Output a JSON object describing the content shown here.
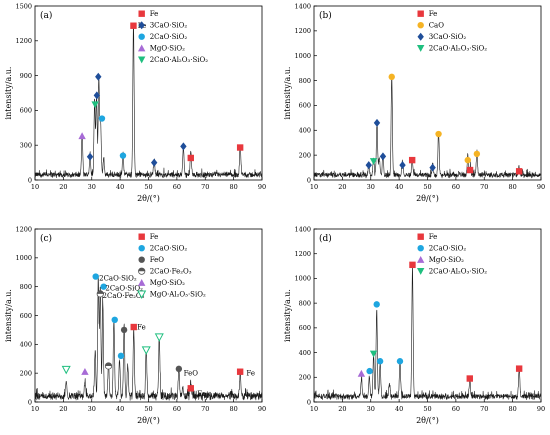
{
  "chart_data": [
    {
      "type": "line",
      "panel_label": "(a)",
      "xlabel": "2θ/(°)",
      "ylabel": "intensity/a.u.",
      "xlim": [
        10,
        90
      ],
      "ylim": [
        0,
        1500
      ],
      "xticks": [
        10,
        20,
        30,
        40,
        50,
        60,
        70,
        80,
        90
      ],
      "yticks": [
        0,
        300,
        600,
        900,
        1200,
        1500
      ],
      "baseline": 45,
      "noise": 25,
      "peaks": [
        [
          26.6,
          340
        ],
        [
          29.4,
          180
        ],
        [
          31.0,
          640
        ],
        [
          31.7,
          680
        ],
        [
          32.5,
          830
        ],
        [
          33.1,
          470
        ],
        [
          34.2,
          140
        ],
        [
          41.0,
          180
        ],
        [
          44.7,
          1320
        ],
        [
          52.0,
          130
        ],
        [
          62.3,
          250
        ],
        [
          64.9,
          190
        ],
        [
          82.3,
          250
        ]
      ],
      "legend": [
        {
          "label": "Fe",
          "marker": "square",
          "color": "#e8383d"
        },
        {
          "label": "3CaO·SiO₂",
          "marker": "diamond",
          "color": "#1f4e9a"
        },
        {
          "label": "2CaO·SiO₂",
          "marker": "circle",
          "color": "#1ea6e0"
        },
        {
          "label": "MgO·SiO₂",
          "marker": "triangle-up",
          "color": "#a76bd6"
        },
        {
          "label": "2CaO·Al₂O₃·SiO₂",
          "marker": "triangle-down",
          "color": "#1fbf7f"
        }
      ],
      "markers": [
        {
          "x": 44.7,
          "y": 1330,
          "marker": "square",
          "color": "#e8383d"
        },
        {
          "x": 64.9,
          "y": 190,
          "marker": "square",
          "color": "#e8383d"
        },
        {
          "x": 82.3,
          "y": 280,
          "marker": "square",
          "color": "#e8383d"
        },
        {
          "x": 32.3,
          "y": 890,
          "marker": "diamond",
          "color": "#1f4e9a"
        },
        {
          "x": 31.8,
          "y": 730,
          "marker": "diamond",
          "color": "#1f4e9a"
        },
        {
          "x": 29.4,
          "y": 200,
          "marker": "diamond",
          "color": "#1f4e9a"
        },
        {
          "x": 52.0,
          "y": 150,
          "marker": "diamond",
          "color": "#1f4e9a"
        },
        {
          "x": 62.3,
          "y": 290,
          "marker": "diamond",
          "color": "#1f4e9a"
        },
        {
          "x": 33.6,
          "y": 530,
          "marker": "circle",
          "color": "#1ea6e0"
        },
        {
          "x": 41.0,
          "y": 210,
          "marker": "circle",
          "color": "#1ea6e0"
        },
        {
          "x": 26.6,
          "y": 380,
          "marker": "triangle-up",
          "color": "#a76bd6"
        },
        {
          "x": 31.2,
          "y": 650,
          "marker": "triangle-down",
          "color": "#1fbf7f"
        }
      ],
      "annotations": [
        {
          "text": "Fe",
          "x": 46.2,
          "y": 1330
        }
      ]
    },
    {
      "type": "line",
      "panel_label": "(b)",
      "xlabel": "2θ/(°)",
      "ylabel": "intensity/a.u.",
      "xlim": [
        10,
        90
      ],
      "ylim": [
        0,
        1400
      ],
      "xticks": [
        10,
        20,
        30,
        40,
        50,
        60,
        70,
        80,
        90
      ],
      "yticks": [
        0,
        200,
        400,
        600,
        800,
        1000,
        1200,
        1400
      ],
      "baseline": 40,
      "noise": 22,
      "peaks": [
        [
          29.3,
          110
        ],
        [
          31.0,
          130
        ],
        [
          32.2,
          420
        ],
        [
          33.0,
          140
        ],
        [
          34.3,
          160
        ],
        [
          37.4,
          800
        ],
        [
          41.2,
          110
        ],
        [
          44.6,
          140
        ],
        [
          51.8,
          90
        ],
        [
          53.9,
          340
        ],
        [
          64.2,
          150
        ],
        [
          65.0,
          70
        ],
        [
          67.4,
          190
        ],
        [
          82.3,
          60
        ]
      ],
      "legend": [
        {
          "label": "Fe",
          "marker": "square",
          "color": "#e8383d"
        },
        {
          "label": "CaO",
          "marker": "circle",
          "color": "#f5b324"
        },
        {
          "label": "3CaO·SiO₂",
          "marker": "diamond",
          "color": "#1f4e9a"
        },
        {
          "label": "2CaO·Al₂O₃·SiO₂",
          "marker": "triangle-down",
          "color": "#1fbf7f"
        }
      ],
      "markers": [
        {
          "x": 44.6,
          "y": 160,
          "marker": "square",
          "color": "#e8383d"
        },
        {
          "x": 65.0,
          "y": 80,
          "marker": "square",
          "color": "#e8383d"
        },
        {
          "x": 82.3,
          "y": 70,
          "marker": "square",
          "color": "#e8383d"
        },
        {
          "x": 37.4,
          "y": 830,
          "marker": "circle",
          "color": "#f5b324"
        },
        {
          "x": 53.9,
          "y": 370,
          "marker": "circle",
          "color": "#f5b324"
        },
        {
          "x": 64.2,
          "y": 160,
          "marker": "circle",
          "color": "#f5b324"
        },
        {
          "x": 67.4,
          "y": 210,
          "marker": "circle",
          "color": "#f5b324"
        },
        {
          "x": 32.2,
          "y": 460,
          "marker": "diamond",
          "color": "#1f4e9a"
        },
        {
          "x": 29.3,
          "y": 120,
          "marker": "diamond",
          "color": "#1f4e9a"
        },
        {
          "x": 34.3,
          "y": 190,
          "marker": "diamond",
          "color": "#1f4e9a"
        },
        {
          "x": 41.2,
          "y": 120,
          "marker": "diamond",
          "color": "#1f4e9a"
        },
        {
          "x": 51.8,
          "y": 100,
          "marker": "diamond",
          "color": "#1f4e9a"
        },
        {
          "x": 31.0,
          "y": 150,
          "marker": "triangle-down",
          "color": "#1fbf7f"
        }
      ],
      "annotations": []
    },
    {
      "type": "line",
      "panel_label": "(c)",
      "xlabel": "2θ/(°)",
      "ylabel": "intensity/a.u.",
      "xlim": [
        10,
        90
      ],
      "ylim": [
        0,
        1200
      ],
      "xticks": [
        10,
        20,
        30,
        40,
        50,
        60,
        70,
        80,
        90
      ],
      "yticks": [
        0,
        200,
        400,
        600,
        800,
        1000,
        1200
      ],
      "baseline": 40,
      "noise": 28,
      "peaks": [
        [
          21.0,
          120
        ],
        [
          27.6,
          110
        ],
        [
          31.2,
          320
        ],
        [
          32.3,
          820
        ],
        [
          33.0,
          760
        ],
        [
          33.9,
          640
        ],
        [
          35.9,
          230
        ],
        [
          37.8,
          530
        ],
        [
          39.8,
          260
        ],
        [
          41.4,
          500
        ],
        [
          42.7,
          220
        ],
        [
          44.8,
          460
        ],
        [
          49.2,
          330
        ],
        [
          53.8,
          420
        ],
        [
          60.7,
          200
        ],
        [
          62.0,
          60
        ],
        [
          64.9,
          90
        ],
        [
          82.3,
          160
        ]
      ],
      "legend": [
        {
          "label": "Fe",
          "marker": "square",
          "color": "#e8383d"
        },
        {
          "label": "2CaO·SiO₂",
          "marker": "circle",
          "color": "#1ea6e0"
        },
        {
          "label": "FeO",
          "marker": "circle",
          "color": "#555555"
        },
        {
          "label": "2CaO·Fe₂O₃",
          "marker": "halfcircle",
          "color": "#555555"
        },
        {
          "label": "MgO·SiO₂",
          "marker": "triangle-up",
          "color": "#a76bd6"
        },
        {
          "label": "MgO·Al₂O₃·SiO₂",
          "marker": "triangle-down-open",
          "color": "#1fbf7f"
        }
      ],
      "markers": [
        {
          "x": 44.8,
          "y": 520,
          "marker": "square",
          "color": "#e8383d"
        },
        {
          "x": 64.9,
          "y": 95,
          "marker": "square",
          "color": "#e8383d"
        },
        {
          "x": 82.3,
          "y": 210,
          "marker": "square",
          "color": "#e8383d"
        },
        {
          "x": 31.4,
          "y": 870,
          "marker": "circle",
          "color": "#1ea6e0"
        },
        {
          "x": 34.2,
          "y": 800,
          "marker": "circle",
          "color": "#1ea6e0"
        },
        {
          "x": 38.1,
          "y": 570,
          "marker": "circle",
          "color": "#1ea6e0"
        },
        {
          "x": 40.3,
          "y": 320,
          "marker": "circle",
          "color": "#1ea6e0"
        },
        {
          "x": 41.4,
          "y": 500,
          "marker": "circle",
          "color": "#555555"
        },
        {
          "x": 60.7,
          "y": 230,
          "marker": "circle",
          "color": "#555555"
        },
        {
          "x": 33.0,
          "y": 750,
          "marker": "halfcircle",
          "color": "#555555"
        },
        {
          "x": 35.9,
          "y": 250,
          "marker": "halfcircle",
          "color": "#555555"
        },
        {
          "x": 27.6,
          "y": 210,
          "marker": "triangle-up",
          "color": "#a76bd6"
        },
        {
          "x": 21.0,
          "y": 225,
          "marker": "triangle-down-open",
          "color": "#1fbf7f"
        },
        {
          "x": 49.2,
          "y": 360,
          "marker": "triangle-down-open",
          "color": "#1fbf7f"
        },
        {
          "x": 53.8,
          "y": 450,
          "marker": "triangle-down-open",
          "color": "#1fbf7f"
        }
      ],
      "annotations": [
        {
          "text": "2CaO·SiO₂",
          "x": 32.6,
          "y": 860
        },
        {
          "text": "2CaO·SiO₂",
          "x": 34.8,
          "y": 790
        },
        {
          "text": "2CaO·Fe₂O₃",
          "x": 33.8,
          "y": 740
        },
        {
          "text": "Fe",
          "x": 46.0,
          "y": 520
        },
        {
          "text": "FeO",
          "x": 62.4,
          "y": 200
        },
        {
          "text": "Fe",
          "x": 67.2,
          "y": 60
        },
        {
          "text": "Fe",
          "x": 84.5,
          "y": 200
        }
      ]
    },
    {
      "type": "line",
      "panel_label": "(d)",
      "xlabel": "2θ/(°)",
      "ylabel": "intensity/a.u.",
      "xlim": [
        10,
        90
      ],
      "ylim": [
        0,
        1400
      ],
      "xticks": [
        10,
        20,
        30,
        40,
        50,
        60,
        70,
        80,
        90
      ],
      "yticks": [
        0,
        200,
        400,
        600,
        800,
        1000,
        1200,
        1400
      ],
      "baseline": 45,
      "noise": 25,
      "peaks": [
        [
          26.7,
          150
        ],
        [
          29.5,
          170
        ],
        [
          31.0,
          330
        ],
        [
          32.1,
          700
        ],
        [
          33.3,
          280
        ],
        [
          36.6,
          110
        ],
        [
          40.3,
          280
        ],
        [
          44.7,
          1060
        ],
        [
          64.9,
          140
        ],
        [
          82.3,
          230
        ]
      ],
      "legend": [
        {
          "label": "Fe",
          "marker": "square",
          "color": "#e8383d"
        },
        {
          "label": "2CaO·SiO₂",
          "marker": "circle",
          "color": "#1ea6e0"
        },
        {
          "label": "MgO·SiO₂",
          "marker": "triangle-up",
          "color": "#a76bd6"
        },
        {
          "label": "2CaO·Al₂O₃·SiO₂",
          "marker": "triangle-down",
          "color": "#1fbf7f"
        }
      ],
      "markers": [
        {
          "x": 44.7,
          "y": 1110,
          "marker": "square",
          "color": "#e8383d"
        },
        {
          "x": 64.9,
          "y": 190,
          "marker": "square",
          "color": "#e8383d"
        },
        {
          "x": 82.3,
          "y": 270,
          "marker": "square",
          "color": "#e8383d"
        },
        {
          "x": 32.1,
          "y": 790,
          "marker": "circle",
          "color": "#1ea6e0"
        },
        {
          "x": 29.6,
          "y": 250,
          "marker": "circle",
          "color": "#1ea6e0"
        },
        {
          "x": 33.3,
          "y": 330,
          "marker": "circle",
          "color": "#1ea6e0"
        },
        {
          "x": 40.3,
          "y": 330,
          "marker": "circle",
          "color": "#1ea6e0"
        },
        {
          "x": 26.7,
          "y": 230,
          "marker": "triangle-up",
          "color": "#a76bd6"
        },
        {
          "x": 31.0,
          "y": 390,
          "marker": "triangle-down",
          "color": "#1fbf7f"
        }
      ],
      "annotations": []
    }
  ]
}
